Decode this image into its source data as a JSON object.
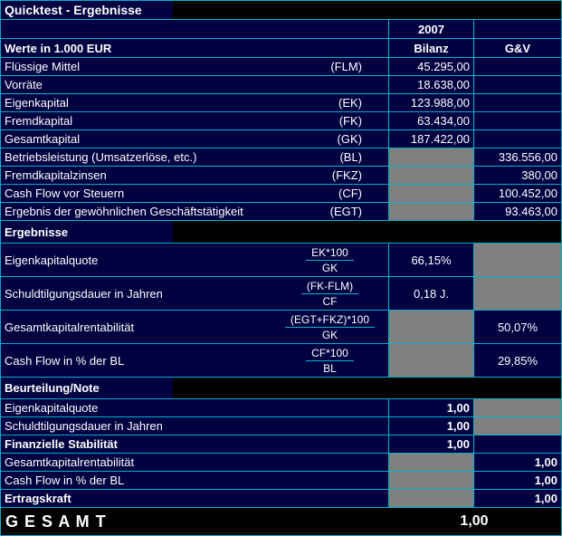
{
  "title": "Quicktest - Ergebnisse",
  "header": {
    "year": "2007",
    "unit_label": "Werte in 1.000 EUR",
    "col_bilanz": "Bilanz",
    "col_gv": "G&V"
  },
  "values_section": {
    "rows": [
      {
        "label": "Flüssige Mittel",
        "code": "(FLM)",
        "bilanz": "45.295,00"
      },
      {
        "label": "Vorräte",
        "bilanz": "18.638,00"
      },
      {
        "label": "Eigenkapital",
        "code": "(EK)",
        "bilanz": "123.988,00"
      },
      {
        "label": "Fremdkapital",
        "code": "(FK)",
        "bilanz": "63.434,00"
      },
      {
        "label": "Gesamtkapital",
        "code": "(GK)",
        "bilanz": "187.422,00"
      },
      {
        "label": "Betriebsleistung (Umsatzerlöse, etc.)",
        "code": "(BL)",
        "gv": "336.556,00"
      },
      {
        "label": "Fremdkapitalzinsen",
        "code": "(FKZ)",
        "gv": "380,00"
      },
      {
        "label": "Cash Flow vor Steuern",
        "code": "(CF)",
        "gv": "100.452,00"
      },
      {
        "label": "Ergebnis der gewöhnlichen Geschäftstätigkeit",
        "code": "(EGT)",
        "gv": "93.463,00"
      }
    ]
  },
  "results_section": {
    "heading": "Ergebnisse",
    "rows": [
      {
        "label": "Eigenkapitalquote",
        "numerator": "EK*100",
        "denominator": "GK",
        "bilanz": "66,15%"
      },
      {
        "label": "Schuldtilgungsdauer in Jahren",
        "numerator": "(FK-FLM)",
        "denominator": "CF",
        "bilanz": "0,18 J."
      },
      {
        "label": "Gesamtkapitalrentabilität",
        "numerator": "(EGT+FKZ)*100",
        "denominator": "GK",
        "gv": "50,07%"
      },
      {
        "label": "Cash Flow in % der BL",
        "numerator": "CF*100",
        "denominator": "BL",
        "gv": "29,85%"
      }
    ]
  },
  "rating_section": {
    "heading": "Beurteilung/Note",
    "rows": [
      {
        "label": "Eigenkapitalquote",
        "bilanz": "1,00"
      },
      {
        "label": "Schuldtilgungsdauer in Jahren",
        "bilanz": "1,00"
      },
      {
        "label": "Finanzielle Stabilität",
        "bilanz": "1,00"
      },
      {
        "label": "Gesamtkapitalrentabilität",
        "gv": "1,00"
      },
      {
        "label": "Cash Flow in % der BL",
        "gv": "1,00"
      },
      {
        "label": "Ertragskraft",
        "gv": "1,00"
      }
    ]
  },
  "total": {
    "label": "G E S A M T",
    "value": "1,00"
  },
  "colors": {
    "background": "#000040",
    "grid_line": "#00b0d0",
    "disabled_cell": "#808080",
    "section_band": "#000000",
    "text": "#ffffff"
  }
}
